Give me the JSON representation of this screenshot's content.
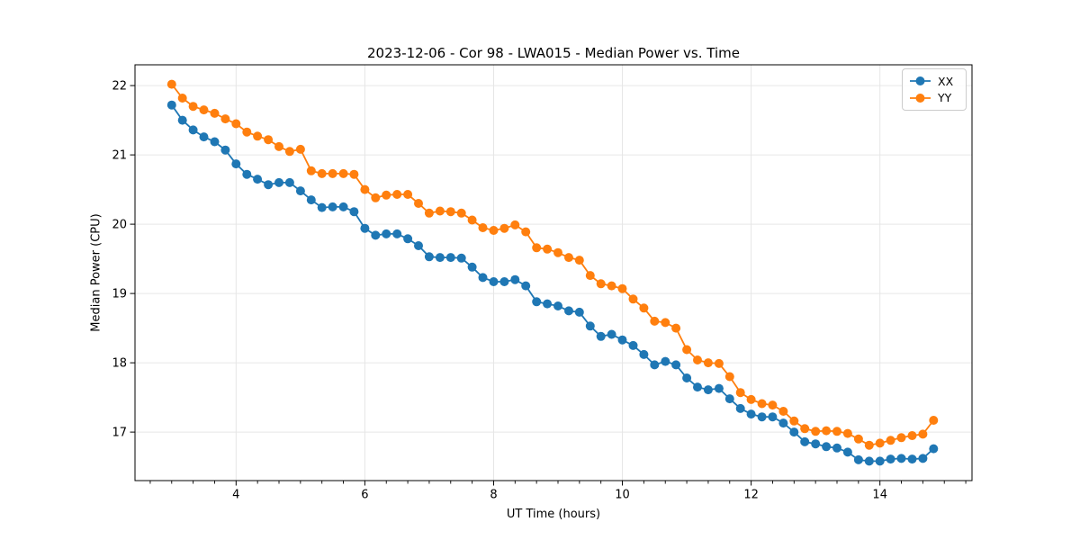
{
  "chart_data": {
    "type": "line",
    "title": "2023-12-06 - Cor 98 - LWA015 - Median Power vs. Time",
    "xlabel": "UT Time (hours)",
    "ylabel": "Median Power (CPU)",
    "xlim": [
      2.43,
      15.43
    ],
    "ylim": [
      16.3,
      22.3
    ],
    "xticks": [
      4,
      6,
      8,
      10,
      12,
      14
    ],
    "yticks": [
      17,
      18,
      19,
      20,
      21,
      22
    ],
    "x_minor_tick_step": 0.33333,
    "grid": true,
    "grid_color": "#e6e6e6",
    "frame_color": "#000000",
    "legend_position": "upper right",
    "x": [
      3.0,
      3.167,
      3.333,
      3.5,
      3.667,
      3.833,
      4.0,
      4.167,
      4.333,
      4.5,
      4.667,
      4.833,
      5.0,
      5.167,
      5.333,
      5.5,
      5.667,
      5.833,
      6.0,
      6.167,
      6.333,
      6.5,
      6.667,
      6.833,
      7.0,
      7.167,
      7.333,
      7.5,
      7.667,
      7.833,
      8.0,
      8.167,
      8.333,
      8.5,
      8.667,
      8.833,
      9.0,
      9.167,
      9.333,
      9.5,
      9.667,
      9.833,
      10.0,
      10.167,
      10.333,
      10.5,
      10.667,
      10.833,
      11.0,
      11.167,
      11.333,
      11.5,
      11.667,
      11.833,
      12.0,
      12.167,
      12.333,
      12.5,
      12.667,
      12.833,
      13.0,
      13.167,
      13.333,
      13.5,
      13.667,
      13.833,
      14.0,
      14.167,
      14.333,
      14.5,
      14.667,
      14.833
    ],
    "series": [
      {
        "name": "XX",
        "color": "#1f77b4",
        "marker": "circle",
        "values": [
          21.72,
          21.5,
          21.36,
          21.26,
          21.19,
          21.07,
          20.87,
          20.72,
          20.65,
          20.57,
          20.6,
          20.6,
          20.48,
          20.35,
          20.24,
          20.25,
          20.25,
          20.18,
          19.94,
          19.84,
          19.86,
          19.86,
          19.79,
          19.69,
          19.53,
          19.52,
          19.52,
          19.51,
          19.38,
          19.23,
          19.17,
          19.17,
          19.2,
          19.11,
          18.88,
          18.85,
          18.82,
          18.75,
          18.73,
          18.53,
          18.38,
          18.41,
          18.33,
          18.25,
          18.12,
          17.97,
          18.02,
          17.97,
          17.78,
          17.65,
          17.61,
          17.63,
          17.48,
          17.34,
          17.26,
          17.22,
          17.22,
          17.13,
          17.0,
          16.86,
          16.83,
          16.79,
          16.77,
          16.71,
          16.6,
          16.58,
          16.58,
          16.61,
          16.62,
          16.61,
          16.62,
          16.76
        ]
      },
      {
        "name": "YY",
        "color": "#ff7f0e",
        "marker": "circle",
        "values": [
          22.02,
          21.82,
          21.7,
          21.65,
          21.6,
          21.52,
          21.45,
          21.33,
          21.27,
          21.22,
          21.12,
          21.05,
          21.08,
          20.77,
          20.73,
          20.73,
          20.73,
          20.72,
          20.5,
          20.38,
          20.42,
          20.43,
          20.43,
          20.3,
          20.16,
          20.19,
          20.18,
          20.16,
          20.06,
          19.95,
          19.91,
          19.94,
          19.99,
          19.89,
          19.66,
          19.64,
          19.59,
          19.52,
          19.48,
          19.26,
          19.14,
          19.11,
          19.07,
          18.92,
          18.79,
          18.6,
          18.58,
          18.5,
          18.19,
          18.04,
          18.0,
          17.99,
          17.8,
          17.57,
          17.47,
          17.41,
          17.39,
          17.3,
          17.16,
          17.05,
          17.01,
          17.02,
          17.01,
          16.98,
          16.9,
          16.81,
          16.84,
          16.88,
          16.92,
          16.95,
          16.97,
          17.17
        ]
      }
    ]
  }
}
